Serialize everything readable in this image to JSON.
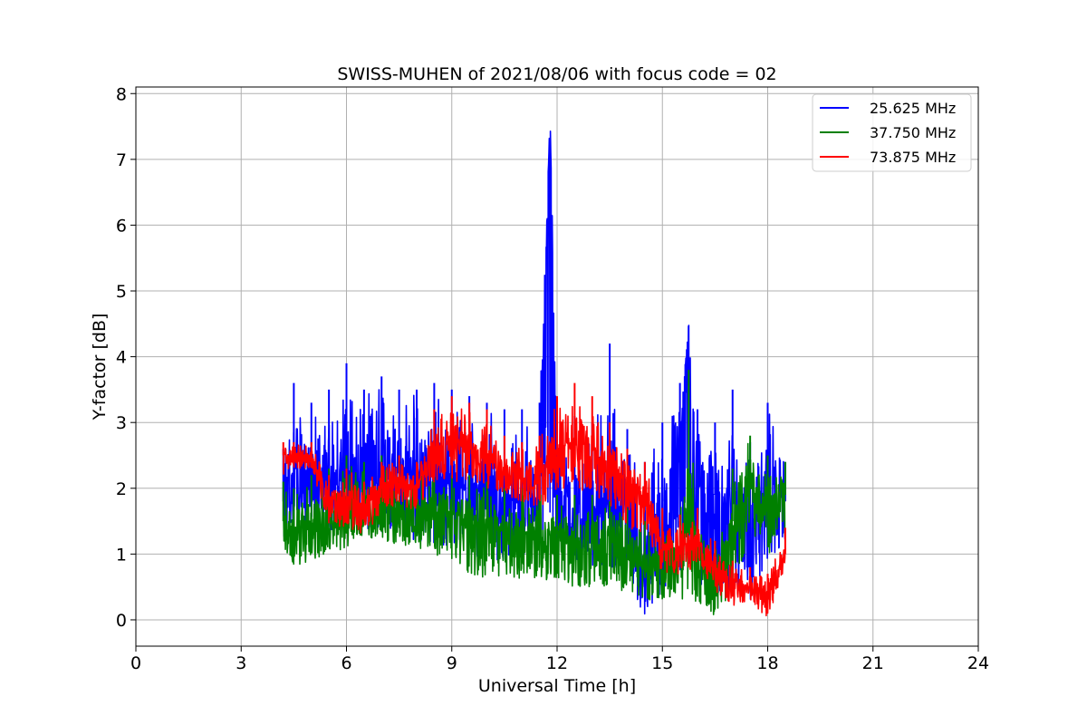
{
  "chart_data": {
    "type": "line",
    "title": "SWISS-MUHEN of 2021/08/06 with focus code = 02",
    "xlabel": "Universal Time [h]",
    "ylabel": "Y-factor [dB]",
    "xlim": [
      0,
      24
    ],
    "ylim": [
      -0.4,
      8.1
    ],
    "xticks": [
      0,
      3,
      6,
      9,
      12,
      15,
      18,
      21,
      24
    ],
    "yticks": [
      0,
      1,
      2,
      3,
      4,
      5,
      6,
      7,
      8
    ],
    "grid": true,
    "legend_position": "top-right",
    "series": [
      {
        "name": "25.625 MHz",
        "color": "#0000ff",
        "x": [
          4.2,
          4.5,
          5.0,
          5.5,
          6.0,
          6.5,
          7.0,
          7.5,
          8.0,
          8.5,
          9.0,
          9.5,
          10.0,
          10.5,
          11.0,
          11.5,
          11.8,
          12.0,
          12.5,
          13.0,
          13.5,
          14.0,
          14.5,
          15.0,
          15.5,
          15.75,
          16.0,
          16.5,
          17.0,
          17.5,
          18.0,
          18.5
        ],
        "values": [
          1.8,
          2.3,
          2.2,
          2.0,
          2.5,
          2.4,
          2.5,
          2.3,
          2.2,
          2.1,
          2.1,
          2.0,
          1.9,
          1.8,
          1.8,
          1.7,
          7.7,
          1.7,
          1.6,
          1.6,
          1.7,
          1.6,
          0.6,
          1.8,
          2.4,
          4.5,
          1.9,
          1.9,
          1.8,
          1.1,
          2.1,
          1.8
        ],
        "lower": [
          1.2,
          1.2,
          1.3,
          1.3,
          1.4,
          1.4,
          1.3,
          1.3,
          1.2,
          1.1,
          1.1,
          1.0,
          0.9,
          0.9,
          0.9,
          0.8,
          0.9,
          0.9,
          0.8,
          0.8,
          0.8,
          0.7,
          0.0,
          0.4,
          0.7,
          0.8,
          0.6,
          0.3,
          0.5,
          0.2,
          0.9,
          1.2
        ],
        "upper": [
          2.6,
          3.6,
          3.3,
          3.5,
          3.9,
          3.5,
          3.7,
          3.5,
          3.5,
          3.6,
          3.5,
          3.4,
          3.3,
          3.2,
          3.2,
          3.3,
          7.7,
          3.2,
          3.1,
          3.0,
          4.2,
          2.9,
          2.4,
          3.0,
          3.6,
          4.5,
          3.2,
          3.0,
          3.5,
          2.7,
          3.3,
          2.4
        ]
      },
      {
        "name": "37.750 MHz",
        "color": "#008000",
        "x": [
          4.2,
          4.5,
          5.0,
          5.5,
          6.0,
          6.5,
          7.0,
          7.5,
          8.0,
          8.5,
          9.0,
          9.5,
          10.0,
          10.5,
          11.0,
          11.5,
          12.0,
          12.5,
          13.0,
          13.5,
          14.0,
          14.5,
          15.0,
          15.5,
          15.75,
          16.0,
          16.5,
          17.0,
          17.5,
          18.0,
          18.5
        ],
        "values": [
          1.5,
          1.3,
          1.5,
          1.6,
          1.7,
          1.6,
          1.8,
          1.7,
          1.7,
          1.6,
          1.6,
          1.5,
          1.4,
          1.3,
          1.3,
          1.3,
          1.3,
          1.2,
          1.2,
          1.2,
          1.0,
          0.9,
          0.9,
          0.9,
          2.0,
          0.8,
          0.7,
          1.5,
          2.0,
          1.8,
          1.9
        ],
        "lower": [
          1.1,
          0.8,
          0.9,
          1.0,
          1.1,
          1.2,
          1.2,
          1.1,
          1.1,
          1.0,
          0.9,
          0.7,
          0.6,
          0.7,
          0.6,
          0.6,
          0.6,
          0.5,
          0.5,
          0.5,
          0.4,
          0.3,
          0.3,
          0.3,
          0.3,
          0.2,
          0.0,
          0.4,
          1.2,
          1.0,
          1.2
        ],
        "upper": [
          2.1,
          2.0,
          2.2,
          2.3,
          2.5,
          2.4,
          2.5,
          2.4,
          2.4,
          2.3,
          2.2,
          2.2,
          2.1,
          2.0,
          2.0,
          2.0,
          1.9,
          1.9,
          1.9,
          1.8,
          1.7,
          1.5,
          1.4,
          1.5,
          3.8,
          1.4,
          1.2,
          2.3,
          2.8,
          2.5,
          2.4
        ]
      },
      {
        "name": "73.875 MHz",
        "color": "#ff0000",
        "x": [
          4.2,
          4.5,
          5.0,
          5.5,
          6.0,
          6.5,
          7.0,
          7.5,
          8.0,
          8.5,
          9.0,
          9.5,
          10.0,
          10.5,
          11.0,
          11.5,
          12.0,
          12.5,
          13.0,
          13.5,
          14.0,
          14.5,
          15.0,
          15.5,
          16.0,
          16.5,
          17.0,
          17.5,
          18.0,
          18.5
        ],
        "values": [
          2.5,
          2.5,
          2.5,
          1.8,
          1.8,
          1.7,
          2.0,
          2.1,
          2.0,
          2.6,
          2.7,
          2.6,
          2.5,
          2.3,
          2.2,
          2.2,
          2.5,
          2.7,
          2.6,
          2.3,
          2.1,
          1.9,
          1.1,
          1.1,
          1.2,
          0.8,
          0.6,
          0.5,
          0.4,
          1.0
        ],
        "lower": [
          2.2,
          2.3,
          2.3,
          1.4,
          1.4,
          1.3,
          1.6,
          1.8,
          1.6,
          2.1,
          2.1,
          2.1,
          2.0,
          1.9,
          1.8,
          1.7,
          1.9,
          2.0,
          1.9,
          1.7,
          1.4,
          1.3,
          0.7,
          0.7,
          0.8,
          0.4,
          0.2,
          0.3,
          0.0,
          0.8
        ],
        "upper": [
          2.7,
          2.7,
          2.7,
          2.2,
          2.3,
          2.1,
          2.4,
          2.5,
          2.4,
          3.2,
          3.4,
          3.3,
          3.2,
          2.8,
          2.7,
          2.8,
          3.4,
          3.6,
          3.4,
          3.0,
          2.6,
          2.4,
          1.7,
          1.6,
          1.7,
          1.2,
          0.9,
          0.8,
          0.7,
          1.4
        ]
      }
    ]
  }
}
